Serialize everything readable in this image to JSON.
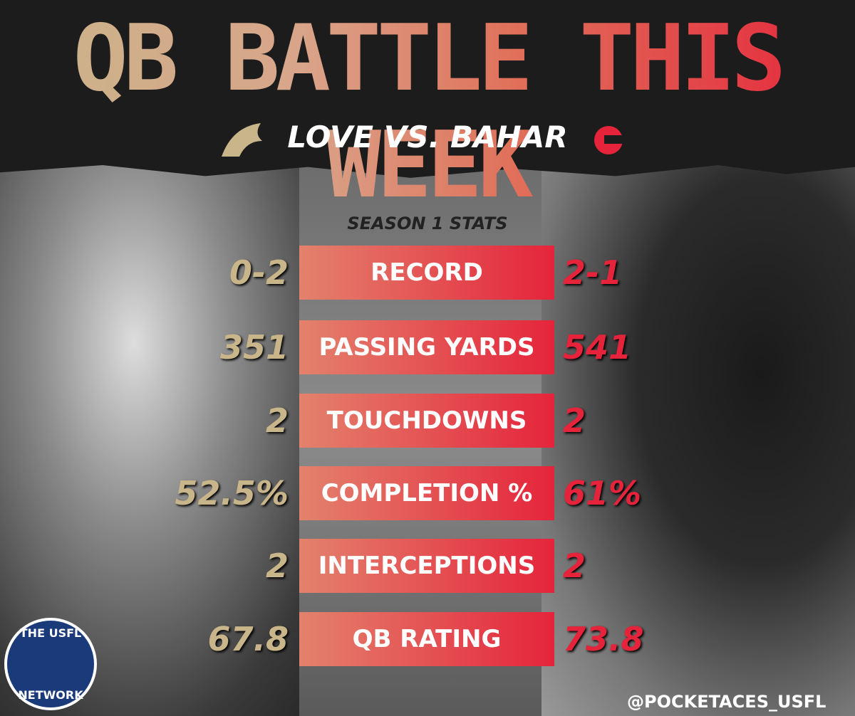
{
  "header": {
    "title": "QB BATTLE THIS WEEK",
    "subtitle": "LOVE VS. BAHAR"
  },
  "stats": {
    "heading": "SEASON 1 STATS",
    "rows": [
      {
        "label": "RECORD",
        "left": "0-2",
        "right": "2-1"
      },
      {
        "label": "PASSING YARDS",
        "left": "351",
        "right": "541"
      },
      {
        "label": "TOUCHDOWNS",
        "left": "2",
        "right": "2"
      },
      {
        "label": "COMPLETION %",
        "left": "52.5%",
        "right": "61%"
      },
      {
        "label": "INTERCEPTIONS",
        "left": "2",
        "right": "2"
      },
      {
        "label": "QB RATING",
        "left": "67.8",
        "right": "73.8"
      }
    ]
  },
  "badge": {
    "top": "THE USFL",
    "bottom": "NETWORK"
  },
  "footer": {
    "handle": "@POCKETACES_USFL"
  }
}
